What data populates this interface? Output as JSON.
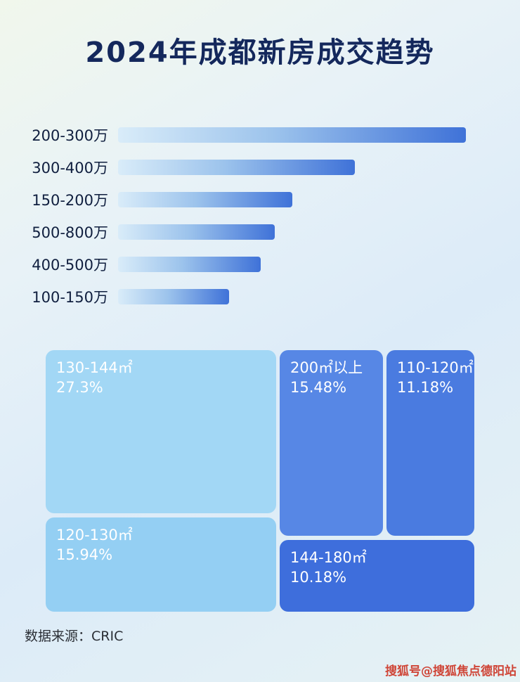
{
  "page": {
    "title": "2024年成都新房成交趋势",
    "footer_source": "数据来源：CRIC",
    "watermark": "搜狐号@搜狐焦点德阳站"
  },
  "colors": {
    "title_text": "#14285c",
    "bar_gradient_start": "#d9ecf9",
    "bar_gradient_end": "#3f72d8",
    "watermark_text": "#cf4537",
    "treemap_130_144": "#a2d7f5",
    "treemap_120_130": "#94cff3",
    "treemap_200_plus": "#5787e5",
    "treemap_110_120": "#4a7be0",
    "treemap_144_180": "#3e6edc"
  },
  "chart_data": [
    {
      "type": "bar",
      "orientation": "horizontal",
      "title": "2024年成都新房成交趋势",
      "categories": [
        "200-300万",
        "300-400万",
        "150-200万",
        "500-800万",
        "400-500万",
        "100-150万"
      ],
      "values": [
        100,
        68,
        50,
        45,
        41,
        32
      ],
      "values_note": "relative bar lengths as % of longest bar; no numeric axis labels are shown in the image",
      "xlabel": "",
      "ylabel": "",
      "grid": false,
      "legend": false
    },
    {
      "type": "treemap",
      "title": "",
      "items": [
        {
          "label": "130-144㎡",
          "percent": "27.3%",
          "value": 27.3
        },
        {
          "label": "120-130㎡",
          "percent": "15.94%",
          "value": 15.94
        },
        {
          "label": "200㎡以上",
          "percent": "15.48%",
          "value": 15.48
        },
        {
          "label": "110-120㎡",
          "percent": "11.18%",
          "value": 11.18
        },
        {
          "label": "144-180㎡",
          "percent": "10.18%",
          "value": 10.18
        }
      ]
    }
  ]
}
